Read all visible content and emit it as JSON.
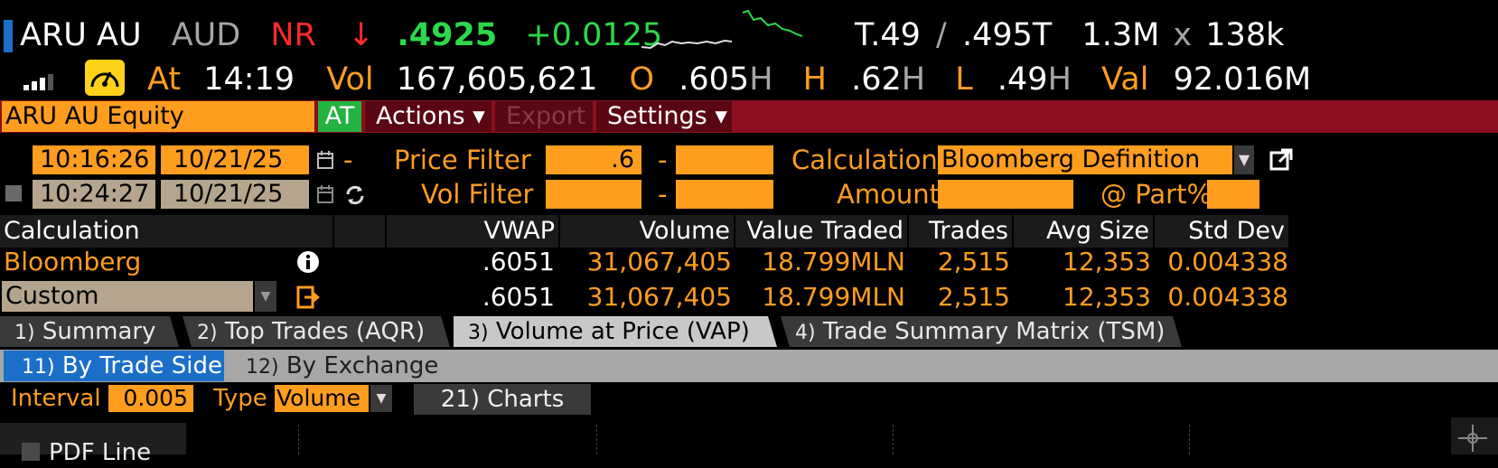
{
  "header": {
    "ticker": "ARU AU",
    "currency": "AUD",
    "rating": "NR",
    "arrow": "↓",
    "last_price": ".4925",
    "change": "+0.0125",
    "bid": "T.49",
    "slash": "/",
    "ask": ".495T",
    "bid_ask_size": "1.3M",
    "x": "x",
    "ask_size": "138k",
    "at_label": "At",
    "time": "14:19",
    "vol_label": "Vol",
    "volume": "167,605,621",
    "open_label": "O",
    "open": ".605",
    "open_flag": "H",
    "high_label": "H",
    "high": ".62",
    "high_flag": "H",
    "low_label": "L",
    "low": ".49",
    "low_flag": "H",
    "val_label": "Val",
    "value": "92.016M"
  },
  "toolbar": {
    "security": "ARU AU Equity",
    "at_button": "AT",
    "actions": "Actions ▾",
    "export": "Export",
    "settings": "Settings ▾"
  },
  "filters": {
    "start_time": "10:16:26",
    "start_date": "10/21/25",
    "dash1": "-",
    "end_time": "10:24:27",
    "end_date": "10/21/25",
    "price_filter_label": "Price Filter",
    "price_filter_min": ".6",
    "price_filter_dash": "-",
    "price_filter_max": "",
    "vol_filter_label": "Vol Filter",
    "vol_filter_min": "",
    "vol_filter_dash": "-",
    "vol_filter_max": "",
    "calculation_label": "Calculation",
    "calculation_value": "Bloomberg Definition",
    "amount_label": "Amount",
    "amount_value": "",
    "part_label": "@ Part%",
    "part_value": ""
  },
  "table": {
    "headers": [
      "Calculation",
      "VWAP",
      "Volume",
      "Value Traded",
      "Trades",
      "Avg Size",
      "Std Dev"
    ],
    "rows": [
      {
        "name": "Bloomberg",
        "vwap": ".6051",
        "volume": "31,067,405",
        "value": "18.799MLN",
        "trades": "2,515",
        "avg": "12,353",
        "std": "0.004338"
      },
      {
        "name": "Custom",
        "vwap": ".6051",
        "volume": "31,067,405",
        "value": "18.799MLN",
        "trades": "2,515",
        "avg": "12,353",
        "std": "0.004338"
      }
    ]
  },
  "tabs": [
    {
      "num": "1)",
      "label": "Summary"
    },
    {
      "num": "2)",
      "label": "Top Trades (AQR)"
    },
    {
      "num": "3)",
      "label": "Volume at Price (VAP)"
    },
    {
      "num": "4)",
      "label": "Trade Summary Matrix (TSM)"
    }
  ],
  "subtabs": [
    {
      "num": "11)",
      "label": "By Trade Side"
    },
    {
      "num": "12)",
      "label": "By Exchange"
    }
  ],
  "options": {
    "interval_label": "Interval",
    "interval_value": "0.005",
    "type_label": "Type",
    "type_value": "Volume",
    "charts_button": "21) Charts",
    "pdf_label": "PDF Line"
  },
  "colors": {
    "accent_orange": "#ff9d1f",
    "toolbar_red": "#8b0f20",
    "up_green": "#2bd94a",
    "down_red": "#ff2a2a",
    "tab_blue": "#1b6fc9"
  }
}
